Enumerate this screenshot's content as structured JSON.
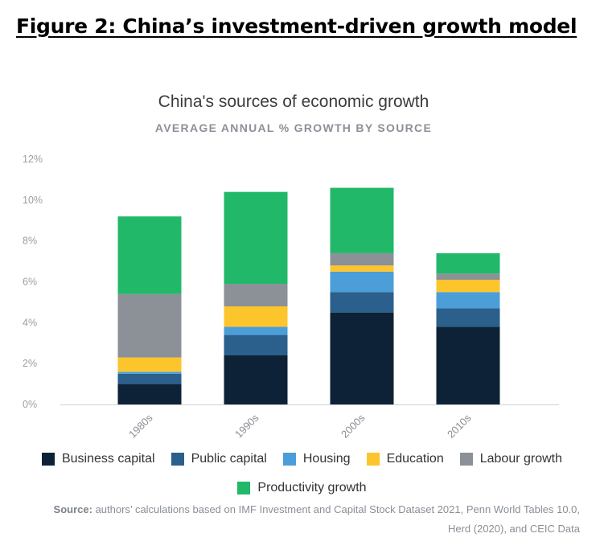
{
  "figure_title": "Figure 2: China’s investment-driven growth model",
  "source": {
    "label": "Source:",
    "text": "authors’ calculations based on IMF Investment and Capital Stock Dataset 2021, Penn World Tables 10.0, Herd (2020), and CEIC Data"
  },
  "chart_data": {
    "type": "bar",
    "stacked": true,
    "title": "China's sources of economic growth",
    "subtitle": "AVERAGE ANNUAL % GROWTH BY SOURCE",
    "categories": [
      "1980s",
      "1990s",
      "2000s",
      "2010s"
    ],
    "y_ticks": [
      "0%",
      "2%",
      "4%",
      "6%",
      "8%",
      "10%",
      "12%"
    ],
    "ylim": [
      0,
      12
    ],
    "grid": false,
    "legend_position": "bottom",
    "series": [
      {
        "name": "Business capital",
        "color": "#0d2236",
        "values": [
          1.0,
          2.4,
          4.5,
          3.8
        ]
      },
      {
        "name": "Public capital",
        "color": "#2b5f8c",
        "values": [
          0.5,
          1.0,
          1.0,
          0.9
        ]
      },
      {
        "name": "Housing",
        "color": "#4b9ed8",
        "values": [
          0.1,
          0.4,
          1.0,
          0.8
        ]
      },
      {
        "name": "Education",
        "color": "#fcc52c",
        "values": [
          0.7,
          1.0,
          0.3,
          0.6
        ]
      },
      {
        "name": "Labour growth",
        "color": "#8c9197",
        "values": [
          3.1,
          1.1,
          0.6,
          0.3
        ]
      },
      {
        "name": "Productivity growth",
        "color": "#22b86a",
        "values": [
          3.8,
          4.5,
          3.2,
          1.0
        ]
      }
    ]
  }
}
